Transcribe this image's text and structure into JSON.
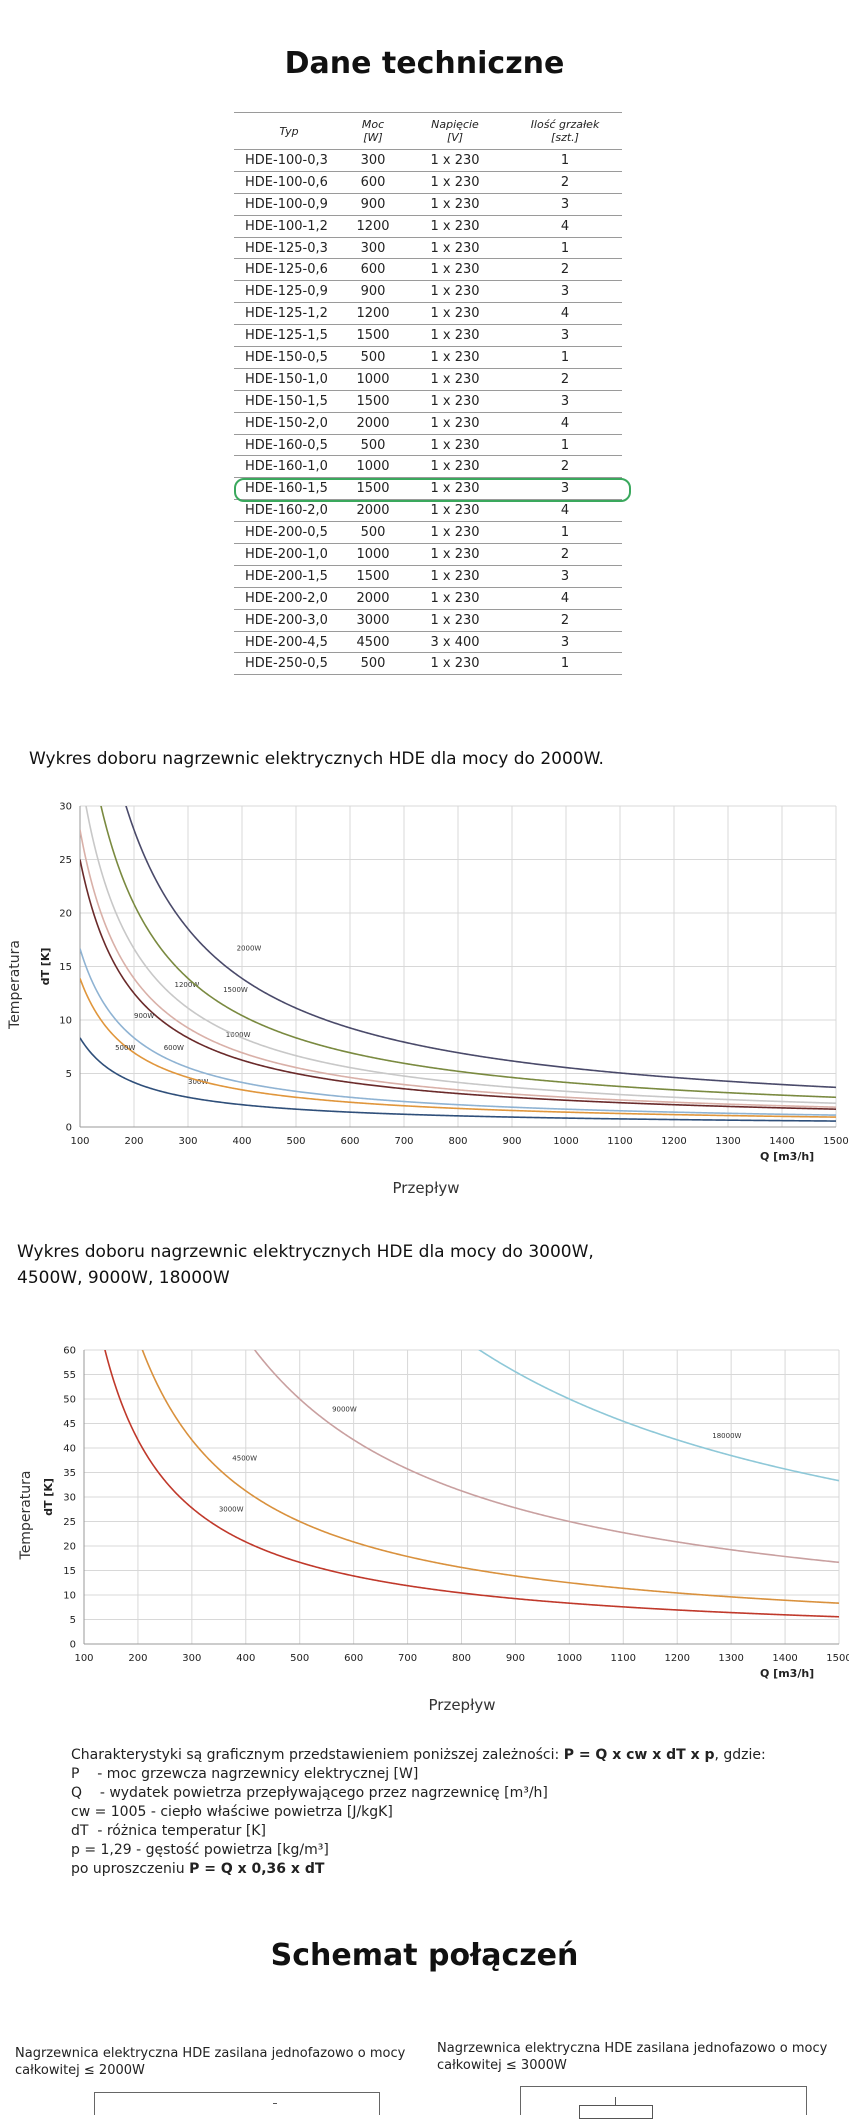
{
  "spec_section": {
    "title": "Dane techniczne",
    "columns": [
      "Typ",
      "Moc\n[W]",
      "Napięcie\n[V]",
      "Ilość grzałek\n[szt.]"
    ],
    "rows": [
      [
        "HDE-100-0,3",
        "300",
        "1 x 230",
        "1"
      ],
      [
        "HDE-100-0,6",
        "600",
        "1 x 230",
        "2"
      ],
      [
        "HDE-100-0,9",
        "900",
        "1 x 230",
        "3"
      ],
      [
        "HDE-100-1,2",
        "1200",
        "1 x 230",
        "4"
      ],
      [
        "HDE-125-0,3",
        "300",
        "1 x 230",
        "1"
      ],
      [
        "HDE-125-0,6",
        "600",
        "1 x 230",
        "2"
      ],
      [
        "HDE-125-0,9",
        "900",
        "1 x 230",
        "3"
      ],
      [
        "HDE-125-1,2",
        "1200",
        "1 x 230",
        "4"
      ],
      [
        "HDE-125-1,5",
        "1500",
        "1 x 230",
        "3"
      ],
      [
        "HDE-150-0,5",
        "500",
        "1 x 230",
        "1"
      ],
      [
        "HDE-150-1,0",
        "1000",
        "1 x 230",
        "2"
      ],
      [
        "HDE-150-1,5",
        "1500",
        "1 x 230",
        "3"
      ],
      [
        "HDE-150-2,0",
        "2000",
        "1 x 230",
        "4"
      ],
      [
        "HDE-160-0,5",
        "500",
        "1 x 230",
        "1"
      ],
      [
        "HDE-160-1,0",
        "1000",
        "1 x 230",
        "2"
      ],
      [
        "HDE-160-1,5",
        "1500",
        "1 x 230",
        "3"
      ],
      [
        "HDE-160-2,0",
        "2000",
        "1 x 230",
        "4"
      ],
      [
        "HDE-200-0,5",
        "500",
        "1 x 230",
        "1"
      ],
      [
        "HDE-200-1,0",
        "1000",
        "1 x 230",
        "2"
      ],
      [
        "HDE-200-1,5",
        "1500",
        "1 x 230",
        "3"
      ],
      [
        "HDE-200-2,0",
        "2000",
        "1 x 230",
        "4"
      ],
      [
        "HDE-200-3,0",
        "3000",
        "1 x 230",
        "2"
      ],
      [
        "HDE-200-4,5",
        "4500",
        "3 x 400",
        "3"
      ],
      [
        "HDE-250-0,5",
        "500",
        "1 x 230",
        "1"
      ]
    ],
    "highlighted_type": "HDE-160-1,5",
    "highlight_color": "#3aa85d"
  },
  "chart1_heading": "Wykres doboru nagrzewnic elektrycznych HDE dla mocy do 2000W.",
  "chart2_heading": "Wykres doboru nagrzewnic elektrycznych HDE dla mocy do 3000W,\n4500W, 9000W, 18000W",
  "chart_data": [
    {
      "type": "line",
      "title": "",
      "xlabel": "Q [m3/h]",
      "xlabel_caption": "Przepływ",
      "ylabel": "dT [K]",
      "ylabel_caption": "Temperatura",
      "xlim": [
        100,
        1500
      ],
      "ylim": [
        0,
        30
      ],
      "xticks": [
        100,
        200,
        300,
        400,
        500,
        600,
        700,
        800,
        900,
        1000,
        1100,
        1200,
        1300,
        1400,
        1500
      ],
      "yticks": [
        0,
        5,
        10,
        15,
        20,
        25,
        30
      ],
      "grid": true,
      "formula": "dT = P / (0.36 * Q)",
      "series": [
        {
          "name": "300W",
          "power": 300,
          "color": "#2f4f7a",
          "label_at": [
            300,
            4
          ]
        },
        {
          "name": "500W",
          "power": 500,
          "color": "#e0963c",
          "label_at": [
            165,
            7.2
          ]
        },
        {
          "name": "600W",
          "power": 600,
          "color": "#8fb3d3",
          "label_at": [
            255,
            7.2
          ]
        },
        {
          "name": "900W",
          "power": 900,
          "color": "#6a2a2a",
          "label_at": [
            200,
            10.2
          ]
        },
        {
          "name": "1000W",
          "power": 1000,
          "color": "#d9b0a8",
          "label_at": [
            370,
            8.4
          ]
        },
        {
          "name": "1200W",
          "power": 1200,
          "color": "#c8c8c8",
          "label_at": [
            275,
            13.1
          ]
        },
        {
          "name": "1500W",
          "power": 1500,
          "color": "#7a8a40",
          "label_at": [
            365,
            12.6
          ]
        },
        {
          "name": "2000W",
          "power": 2000,
          "color": "#4a4a6a",
          "label_at": [
            390,
            16.5
          ]
        }
      ]
    },
    {
      "type": "line",
      "title": "",
      "xlabel": "Q [m3/h]",
      "xlabel_caption": "Przepływ",
      "ylabel": "dT [K]",
      "ylabel_caption": "Temperatura",
      "xlim": [
        100,
        1500
      ],
      "ylim": [
        0,
        60
      ],
      "xticks": [
        100,
        200,
        300,
        400,
        500,
        600,
        700,
        800,
        900,
        1000,
        1100,
        1200,
        1300,
        1400,
        1500
      ],
      "yticks": [
        0,
        5,
        10,
        15,
        20,
        25,
        30,
        35,
        40,
        45,
        50,
        55,
        60
      ],
      "grid": true,
      "formula": "dT = P / (0.36 * Q)",
      "series": [
        {
          "name": "3000W",
          "power": 3000,
          "color": "#c0392b",
          "label_at": [
            350,
            27
          ]
        },
        {
          "name": "4500W",
          "power": 4500,
          "color": "#d9913d",
          "label_at": [
            375,
            37.5
          ]
        },
        {
          "name": "9000W",
          "power": 9000,
          "color": "#c9a0a0",
          "label_at": [
            560,
            47.5
          ]
        },
        {
          "name": "18000W",
          "power": 18000,
          "color": "#8ec8d8",
          "label_at": [
            1265,
            42
          ]
        }
      ]
    }
  ],
  "formula_section": {
    "lines": [
      {
        "text": "Charakterystyki są graficznym przedstawieniem poniższej zależności: ",
        "bold": "P = Q x cw x dT x p",
        "tail": ", gdzie:"
      },
      {
        "text": "P    - moc grzewcza nagrzewnicy elektrycznej [W]"
      },
      {
        "text": "Q    - wydatek powietrza przepływającego przez nagrzewnicę [m³/h]"
      },
      {
        "text": "cw = 1005 - ciepło właściwe powietrza [J/kgK]"
      },
      {
        "text": "dT  - różnica temperatur [K]"
      },
      {
        "text": "p = 1,29 - gęstość powietrza [kg/m³]"
      },
      {
        "text": "po uproszczeniu ",
        "bold": "P = Q x 0,36 x dT"
      }
    ]
  },
  "wiring_section": {
    "title": "Schemat połączeń",
    "caption_left": "Nagrzewnica elektryczna HDE zasilana jednofazowo o mocy\ncałkowitej ≤ 2000W",
    "caption_right": "Nagrzewnica elektryczna HDE zasilana jednofazowo o mocy\ncałkowitej ≤ 3000W"
  }
}
